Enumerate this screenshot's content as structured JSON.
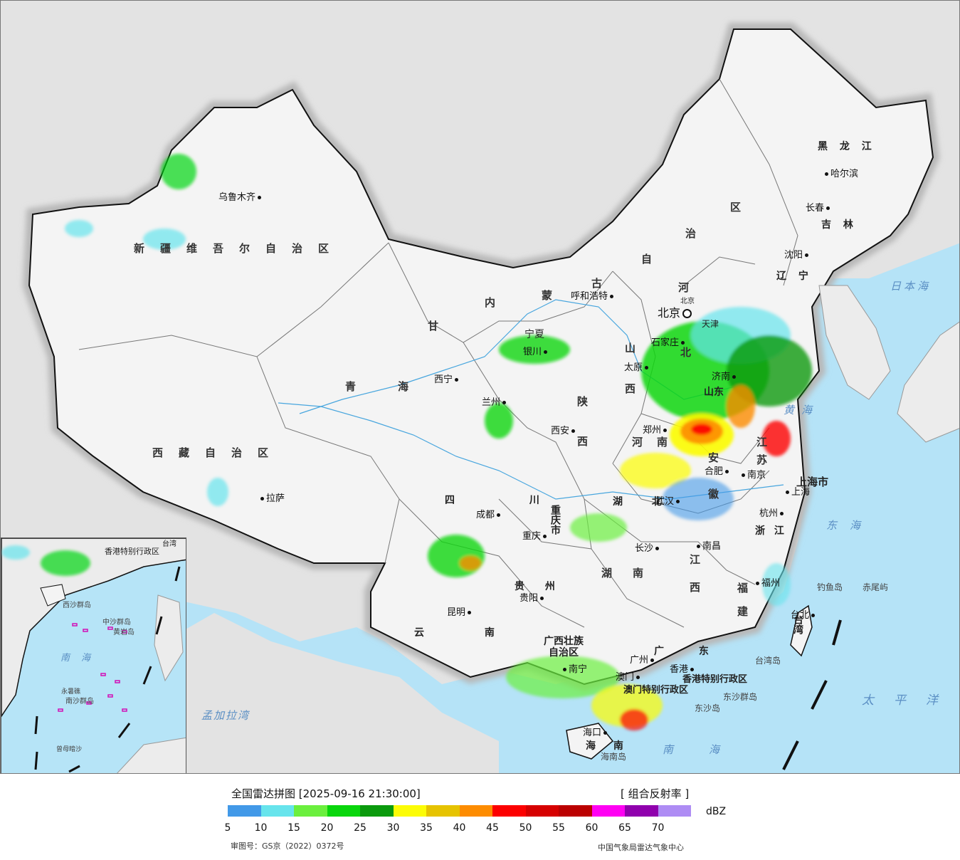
{
  "legend": {
    "title": "全国雷达拼图 [2025-09-16 21:30:00]",
    "product": "[ 组合反射率 ]",
    "unit": "dBZ",
    "ticks": [
      "5",
      "10",
      "15",
      "20",
      "25",
      "30",
      "35",
      "40",
      "45",
      "50",
      "55",
      "60",
      "65",
      "70"
    ],
    "colors": [
      "#4299e8",
      "#67e4ec",
      "#6bef3e",
      "#09d60c",
      "#0a9a0d",
      "#fcfc06",
      "#e6c300",
      "#fd8c00",
      "#fc0000",
      "#d60000",
      "#bb0000",
      "#ff00f3",
      "#9000ad",
      "#ae8cf4"
    ],
    "approval": "审图号：GS京（2022）0372号",
    "source": "中国气象局雷达气象中心"
  },
  "regions": {
    "xinjiang": "新疆维吾尔自治区",
    "tibet": "西藏自治区",
    "qinghai_1": "青",
    "qinghai_2": "海",
    "gansu": "甘",
    "neimenggu": [
      "内",
      "蒙",
      "古",
      "自",
      "治",
      "区"
    ],
    "heilongjiang": "黑 龙 江",
    "jilin": "吉 林",
    "liaoning": "辽 宁",
    "hebei_1": "河",
    "hebei_2": "北",
    "shanxi_1": "山",
    "shanxi_2": "西",
    "shaanxi_1": "陕",
    "shaanxi_2": "西",
    "ningxia": "宁夏",
    "henan_1": "河",
    "henan_2": "南",
    "shandong": "山东",
    "jiangsu_1": "江",
    "jiangsu_2": "苏",
    "anhui_1": "安",
    "anhui_2": "徽",
    "shanghai": "上海市",
    "zhejiang": "浙 江",
    "hubei": "湖 北",
    "hunan_1": "湖",
    "hunan_2": "南",
    "jiangxi_1": "江",
    "jiangxi_2": "西",
    "fujian_1": "福",
    "fujian_2": "建",
    "sichuan": "四 川",
    "chongqing": "重庆市",
    "guizhou": "贵 州",
    "yunnan": "云 南",
    "guangxi_1": "广西壮族",
    "guangxi_2": "自治区",
    "guangdong": "广 东",
    "hainan": "海 南",
    "taiwan": "台湾",
    "hongkong": "香港特别行政区",
    "macau": "澳门特别行政区",
    "tianjin": "天津",
    "beijing": "北京"
  },
  "cities": {
    "urumqi": "乌鲁木齐",
    "lhasa": "拉萨",
    "xining": "西宁",
    "lanzhou": "兰州",
    "yinchuan": "银川",
    "huhehaote": "呼和浩特",
    "beijing": "北京",
    "shijiazhuang": "石家庄",
    "taiyuan": "太原",
    "jinan": "济南",
    "zhengzhou": "郑州",
    "xian": "西安",
    "harbin": "哈尔滨",
    "changchun": "长春",
    "shenyang": "沈阳",
    "nanjing": "南京",
    "hefei": "合肥",
    "shanghai": "上海",
    "hangzhou": "杭州",
    "wuhan": "武汉",
    "nanchang": "南昌",
    "changsha": "长沙",
    "fuzhou": "福州",
    "taipei": "台北",
    "chengdu": "成都",
    "chongqing": "重庆",
    "guiyang": "贵阳",
    "kunming": "昆明",
    "nanning": "南宁",
    "guangzhou": "广州",
    "macau": "澳门",
    "hongkong": "香港",
    "haikou": "海口"
  },
  "seas": {
    "japan": "日本海",
    "east": "东海",
    "yellow": "黄海",
    "pacific": "太平洋",
    "south": "南海",
    "bengal": "孟加拉湾"
  },
  "islands": {
    "diaoyu": "钓鱼岛",
    "chiwei": "赤尾屿",
    "taiwan_island": "台湾岛",
    "dongsha_qundao": "东沙群岛",
    "dongsha": "东沙岛",
    "hainan_island": "海南岛"
  },
  "inset": {
    "south_sea": "南海",
    "zhongsha": "中沙群岛",
    "huangyan": "黄岩岛",
    "nansha": "南沙群岛",
    "yongshu": "永暑礁",
    "zengmu": "曾母暗沙",
    "xisha": "西沙群岛",
    "taiwan": "台湾"
  }
}
